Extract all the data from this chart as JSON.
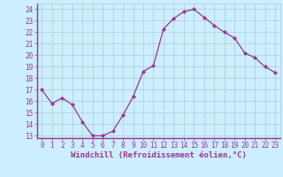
{
  "x": [
    0,
    1,
    2,
    3,
    4,
    5,
    6,
    7,
    8,
    9,
    10,
    11,
    12,
    13,
    14,
    15,
    16,
    17,
    18,
    19,
    20,
    21,
    22,
    23
  ],
  "y": [
    17,
    15.8,
    16.3,
    15.7,
    14.2,
    13.0,
    13.0,
    13.4,
    14.8,
    16.4,
    18.6,
    19.1,
    22.3,
    23.2,
    23.8,
    24.0,
    23.3,
    22.6,
    22.0,
    21.5,
    20.2,
    19.8,
    19.0,
    18.5
  ],
  "line_color": "#993399",
  "marker": "D",
  "marker_size": 2.0,
  "bg_color": "#cceeff",
  "grid_color": "#aacccc",
  "xlabel": "Windchill (Refroidissement éolien,°C)",
  "xlim": [
    -0.5,
    23.5
  ],
  "ylim": [
    12.8,
    24.5
  ],
  "yticks": [
    13,
    14,
    15,
    16,
    17,
    18,
    19,
    20,
    21,
    22,
    23,
    24
  ],
  "xticks": [
    0,
    1,
    2,
    3,
    4,
    5,
    6,
    7,
    8,
    9,
    10,
    11,
    12,
    13,
    14,
    15,
    16,
    17,
    18,
    19,
    20,
    21,
    22,
    23
  ],
  "tick_color": "#993399",
  "label_color": "#993399",
  "spine_color": "#993399",
  "tick_fontsize": 5.5,
  "xlabel_fontsize": 6.5
}
